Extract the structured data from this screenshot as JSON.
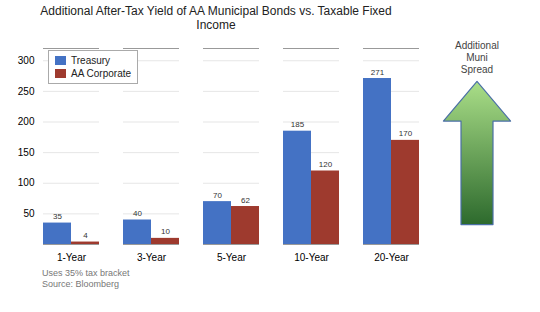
{
  "chart_data": {
    "type": "bar",
    "title": "Additional After-Tax Yield of AA Municipal Bonds vs. Taxable Fixed\nIncome",
    "categories": [
      "1-Year",
      "3-Year",
      "5-Year",
      "10-Year",
      "20-Year"
    ],
    "series": [
      {
        "name": "Treasury",
        "color": "#4472C4",
        "values": [
          35,
          40,
          70,
          185,
          271
        ]
      },
      {
        "name": "AA Corporate",
        "color": "#9E3A2E",
        "values": [
          4,
          10,
          62,
          120,
          170
        ]
      }
    ],
    "ylim": [
      0,
      320
    ],
    "yticks": [
      50,
      100,
      150,
      200,
      250,
      300
    ],
    "grid": true,
    "legend": "upper left",
    "data_labels": true,
    "annotations": [
      "Additional\nMuni\nSpread"
    ],
    "footnotes": [
      "Uses 35% tax bracket",
      "Source: Bloomberg"
    ]
  }
}
